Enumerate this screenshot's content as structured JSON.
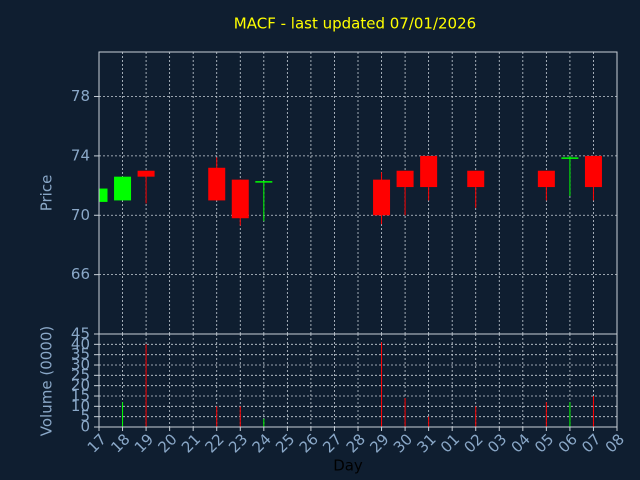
{
  "chart_data": [
    {
      "type": "candlestick",
      "title": "MACF - last updated 07/01/2026",
      "ylabel": "Price",
      "categories": [
        "17",
        "18",
        "19",
        "20",
        "21",
        "22",
        "23",
        "24",
        "25",
        "26",
        "27",
        "28",
        "29",
        "30",
        "31",
        "01",
        "02",
        "03",
        "04",
        "05",
        "06",
        "07",
        "08"
      ],
      "open": [
        70.9,
        71.0,
        73.0,
        null,
        null,
        73.2,
        72.4,
        72.2,
        null,
        null,
        null,
        null,
        72.4,
        73.0,
        74.0,
        null,
        73.0,
        null,
        null,
        73.0,
        73.8,
        74.0,
        null
      ],
      "high": [
        71.8,
        72.6,
        73.0,
        null,
        null,
        73.9,
        72.4,
        72.3,
        null,
        null,
        null,
        null,
        72.9,
        73.0,
        74.0,
        null,
        73.0,
        null,
        null,
        73.0,
        74.0,
        74.0,
        null
      ],
      "low": [
        70.9,
        71.0,
        70.8,
        null,
        null,
        71.0,
        69.3,
        69.6,
        null,
        null,
        null,
        null,
        69.4,
        70.0,
        71.0,
        null,
        70.5,
        null,
        null,
        71.0,
        71.3,
        71.0,
        null
      ],
      "close": [
        71.8,
        72.6,
        72.6,
        null,
        null,
        71.0,
        69.8,
        72.3,
        null,
        null,
        null,
        null,
        70.0,
        71.9,
        71.9,
        null,
        71.9,
        null,
        null,
        71.9,
        73.9,
        71.9,
        null
      ],
      "up_color": "#00ff00",
      "down_color": "#ff0000",
      "ylim": [
        62,
        81
      ],
      "yticks": [
        66,
        70,
        74,
        78
      ],
      "grid": true
    },
    {
      "type": "bar",
      "ylabel": "Volume (0000)",
      "xlabel": "Day",
      "categories": [
        "17",
        "18",
        "19",
        "20",
        "21",
        "22",
        "23",
        "24",
        "25",
        "26",
        "27",
        "28",
        "29",
        "30",
        "31",
        "01",
        "02",
        "03",
        "04",
        "05",
        "06",
        "07",
        "08"
      ],
      "values": [
        0,
        12,
        40,
        null,
        null,
        10,
        10,
        4,
        null,
        null,
        null,
        null,
        41,
        14,
        5,
        null,
        10,
        null,
        null,
        12,
        12,
        15,
        null
      ],
      "colors": [
        "#00ff00",
        "#00ff00",
        "#ff0000",
        null,
        null,
        "#ff0000",
        "#ff0000",
        "#00ff00",
        null,
        null,
        null,
        null,
        "#ff0000",
        "#ff0000",
        "#ff0000",
        null,
        "#ff0000",
        null,
        null,
        "#ff0000",
        "#00ff00",
        "#ff0000",
        null
      ],
      "ylim": [
        0,
        45
      ],
      "yticks": [
        0,
        5,
        10,
        15,
        20,
        25,
        30,
        35,
        40,
        45
      ],
      "grid": true
    }
  ]
}
